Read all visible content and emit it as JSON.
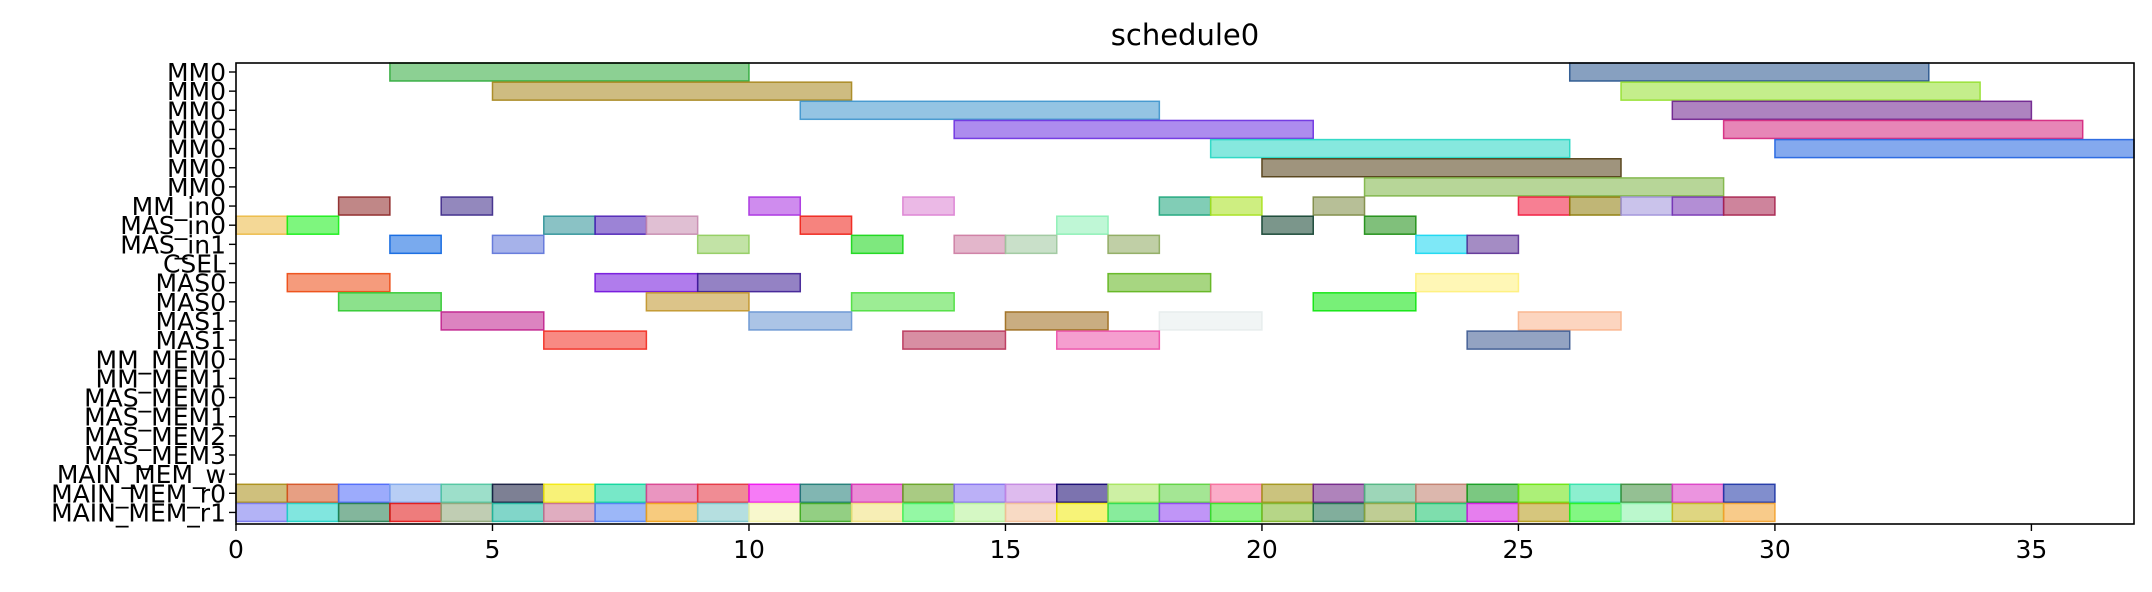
{
  "chart_data": {
    "type": "gantt",
    "title": "schedule0",
    "xlim": [
      0,
      37
    ],
    "x_ticks": [
      0,
      5,
      10,
      15,
      20,
      25,
      30,
      35
    ],
    "rows": [
      "MM0",
      "MM0",
      "MM0",
      "MM0",
      "MM0",
      "MM0",
      "MM0",
      "MM_in0",
      "MAS_in0",
      "MAS_in1",
      "CSEL",
      "MAS0",
      "MAS0",
      "MAS1",
      "MAS1",
      "MM_MEM0",
      "MM_MEM1",
      "MAS_MEM0",
      "MAS_MEM1",
      "MAS_MEM2",
      "MAS_MEM3",
      "MAIN_MEM_w",
      "MAIN_MEM_r0",
      "MAIN_MEM_r1"
    ],
    "bars": [
      {
        "row": 0,
        "start": 3,
        "end": 10,
        "color": "#2eaa3a"
      },
      {
        "row": 0,
        "start": 26,
        "end": 33,
        "color": "#25528c"
      },
      {
        "row": 1,
        "start": 5,
        "end": 12,
        "color": "#a6851a"
      },
      {
        "row": 1,
        "start": 27,
        "end": 34,
        "color": "#93e02c"
      },
      {
        "row": 2,
        "start": 11,
        "end": 18,
        "color": "#3c94cc"
      },
      {
        "row": 2,
        "start": 28,
        "end": 35,
        "color": "#6b1e8c"
      },
      {
        "row": 3,
        "start": 14,
        "end": 21,
        "color": "#6a2ee0"
      },
      {
        "row": 3,
        "start": 29,
        "end": 36,
        "color": "#d4237c"
      },
      {
        "row": 4,
        "start": 19,
        "end": 26,
        "color": "#23d6c2"
      },
      {
        "row": 4,
        "start": 30,
        "end": 37,
        "color": "#1f62e0"
      },
      {
        "row": 5,
        "start": 20,
        "end": 27,
        "color": "#503c12"
      },
      {
        "row": 6,
        "start": 22,
        "end": 29,
        "color": "#7cb443"
      },
      {
        "row": 7,
        "start": 2,
        "end": 3,
        "color": "#8c2424"
      },
      {
        "row": 7,
        "start": 4,
        "end": 5,
        "color": "#3a2687"
      },
      {
        "row": 7,
        "start": 10,
        "end": 11,
        "color": "#a72ee0"
      },
      {
        "row": 7,
        "start": 13,
        "end": 14,
        "color": "#db80d2"
      },
      {
        "row": 7,
        "start": 18,
        "end": 19,
        "color": "#1aa47a"
      },
      {
        "row": 7,
        "start": 19,
        "end": 20,
        "color": "#a6e01a"
      },
      {
        "row": 7,
        "start": 21,
        "end": 22,
        "color": "#7c8a42"
      },
      {
        "row": 7,
        "start": 25,
        "end": 26,
        "color": "#f1163a"
      },
      {
        "row": 7,
        "start": 26,
        "end": 27,
        "color": "#8c7a05"
      },
      {
        "row": 7,
        "start": 27,
        "end": 28,
        "color": "#9f91da"
      },
      {
        "row": 7,
        "start": 28,
        "end": 29,
        "color": "#7432b3"
      },
      {
        "row": 7,
        "start": 29,
        "end": 30,
        "color": "#a61f4b"
      },
      {
        "row": 8,
        "start": 0,
        "end": 1,
        "color": "#ebb840"
      },
      {
        "row": 8,
        "start": 1,
        "end": 2,
        "color": "#14ee14"
      },
      {
        "row": 8,
        "start": 6,
        "end": 7,
        "color": "#299096"
      },
      {
        "row": 8,
        "start": 7,
        "end": 8,
        "color": "#4a1eb5"
      },
      {
        "row": 8,
        "start": 8,
        "end": 9,
        "color": "#c78aae"
      },
      {
        "row": 8,
        "start": 11,
        "end": 12,
        "color": "#ee1e14"
      },
      {
        "row": 8,
        "start": 16,
        "end": 17,
        "color": "#8af0b4"
      },
      {
        "row": 8,
        "start": 20,
        "end": 21,
        "color": "#0e3f2c"
      },
      {
        "row": 8,
        "start": 22,
        "end": 23,
        "color": "#188c0e"
      },
      {
        "row": 9,
        "start": 3,
        "end": 4,
        "color": "#0b64e0"
      },
      {
        "row": 9,
        "start": 5,
        "end": 6,
        "color": "#5c72d8"
      },
      {
        "row": 9,
        "start": 9,
        "end": 10,
        "color": "#8fcc5c"
      },
      {
        "row": 9,
        "start": 12,
        "end": 13,
        "color": "#14d614"
      },
      {
        "row": 9,
        "start": 14,
        "end": 15,
        "color": "#cc7aa0"
      },
      {
        "row": 9,
        "start": 15,
        "end": 16,
        "color": "#9cc79c"
      },
      {
        "row": 9,
        "start": 17,
        "end": 18,
        "color": "#8ca85c"
      },
      {
        "row": 9,
        "start": 23,
        "end": 24,
        "color": "#14d6f0"
      },
      {
        "row": 9,
        "start": 24,
        "end": 25,
        "color": "#5a2e94"
      },
      {
        "row": 11,
        "start": 1,
        "end": 3,
        "color": "#ec4810"
      },
      {
        "row": 11,
        "start": 7,
        "end": 9,
        "color": "#7010dc"
      },
      {
        "row": 11,
        "start": 9,
        "end": 11,
        "color": "#3c1c94"
      },
      {
        "row": 11,
        "start": 17,
        "end": 19,
        "color": "#5eb41a"
      },
      {
        "row": 11,
        "start": 23,
        "end": 25,
        "color": "#fff07a"
      },
      {
        "row": 12,
        "start": 2,
        "end": 4,
        "color": "#2ec82e"
      },
      {
        "row": 12,
        "start": 8,
        "end": 10,
        "color": "#c09428"
      },
      {
        "row": 12,
        "start": 12,
        "end": 14,
        "color": "#4ade3c"
      },
      {
        "row": 12,
        "start": 21,
        "end": 23,
        "color": "#0ae40a"
      },
      {
        "row": 13,
        "start": 4,
        "end": 6,
        "color": "#c01e8c"
      },
      {
        "row": 13,
        "start": 10,
        "end": 12,
        "color": "#6694d2"
      },
      {
        "row": 13,
        "start": 15,
        "end": 17,
        "color": "#9c6a1a"
      },
      {
        "row": 13,
        "start": 18,
        "end": 20,
        "color": "#e6ecec"
      },
      {
        "row": 13,
        "start": 25,
        "end": 27,
        "color": "#fab28a"
      },
      {
        "row": 14,
        "start": 6,
        "end": 8,
        "color": "#f22a1e"
      },
      {
        "row": 14,
        "start": 13,
        "end": 15,
        "color": "#b83258"
      },
      {
        "row": 14,
        "start": 16,
        "end": 18,
        "color": "#ec4ea8"
      },
      {
        "row": 14,
        "start": 24,
        "end": 26,
        "color": "#3a5890"
      },
      {
        "row": 22,
        "start": 0,
        "end": 1,
        "color": "#a88c12"
      },
      {
        "row": 22,
        "start": 1,
        "end": 2,
        "color": "#d4501e"
      },
      {
        "row": 22,
        "start": 2,
        "end": 3,
        "color": "#4a66fa"
      },
      {
        "row": 22,
        "start": 3,
        "end": 4,
        "color": "#7ea6ec"
      },
      {
        "row": 22,
        "start": 4,
        "end": 5,
        "color": "#4cc49e"
      },
      {
        "row": 22,
        "start": 5,
        "end": 6,
        "color": "#12183c"
      },
      {
        "row": 22,
        "start": 6,
        "end": 7,
        "color": "#f2e80a"
      },
      {
        "row": 22,
        "start": 7,
        "end": 8,
        "color": "#08d69a"
      },
      {
        "row": 22,
        "start": 8,
        "end": 9,
        "color": "#d83e8c"
      },
      {
        "row": 22,
        "start": 9,
        "end": 10,
        "color": "#e42e3c"
      },
      {
        "row": 22,
        "start": 10,
        "end": 11,
        "color": "#ee0eee"
      },
      {
        "row": 22,
        "start": 11,
        "end": 12,
        "color": "#1a7a72"
      },
      {
        "row": 22,
        "start": 12,
        "end": 13,
        "color": "#da2cb4"
      },
      {
        "row": 22,
        "start": 13,
        "end": 14,
        "color": "#62a01e"
      },
      {
        "row": 22,
        "start": 14,
        "end": 15,
        "color": "#8470f0"
      },
      {
        "row": 22,
        "start": 15,
        "end": 16,
        "color": "#c284e0"
      },
      {
        "row": 22,
        "start": 16,
        "end": 17,
        "color": "#10006e"
      },
      {
        "row": 22,
        "start": 17,
        "end": 18,
        "color": "#a4e45a"
      },
      {
        "row": 22,
        "start": 18,
        "end": 19,
        "color": "#5ad23c"
      },
      {
        "row": 22,
        "start": 19,
        "end": 20,
        "color": "#f8689a"
      },
      {
        "row": 22,
        "start": 20,
        "end": 21,
        "color": "#a09214"
      },
      {
        "row": 22,
        "start": 21,
        "end": 22,
        "color": "#6e1e84"
      },
      {
        "row": 22,
        "start": 22,
        "end": 23,
        "color": "#4cb47e"
      },
      {
        "row": 22,
        "start": 23,
        "end": 24,
        "color": "#c07c6a"
      },
      {
        "row": 22,
        "start": 24,
        "end": 25,
        "color": "#0e9a1a"
      },
      {
        "row": 22,
        "start": 25,
        "end": 26,
        "color": "#68e40a"
      },
      {
        "row": 22,
        "start": 26,
        "end": 27,
        "color": "#2ee2a8"
      },
      {
        "row": 22,
        "start": 27,
        "end": 28,
        "color": "#3c8c3a"
      },
      {
        "row": 22,
        "start": 28,
        "end": 29,
        "color": "#da3cc4"
      },
      {
        "row": 22,
        "start": 29,
        "end": 30,
        "color": "#1a32a4"
      },
      {
        "row": 23,
        "start": 0,
        "end": 1,
        "color": "#7474ee"
      },
      {
        "row": 23,
        "start": 1,
        "end": 2,
        "color": "#1ad2c4"
      },
      {
        "row": 23,
        "start": 2,
        "end": 3,
        "color": "#1e7a4a"
      },
      {
        "row": 23,
        "start": 3,
        "end": 4,
        "color": "#e01010"
      },
      {
        "row": 23,
        "start": 4,
        "end": 5,
        "color": "#8ca474"
      },
      {
        "row": 23,
        "start": 5,
        "end": 6,
        "color": "#1ab49c"
      },
      {
        "row": 23,
        "start": 6,
        "end": 7,
        "color": "#c66a8c"
      },
      {
        "row": 23,
        "start": 7,
        "end": 8,
        "color": "#4a7cf2"
      },
      {
        "row": 23,
        "start": 8,
        "end": 9,
        "color": "#f0a014"
      },
      {
        "row": 23,
        "start": 9,
        "end": 10,
        "color": "#78c4c6"
      },
      {
        "row": 23,
        "start": 10,
        "end": 11,
        "color": "#f2f2a4"
      },
      {
        "row": 23,
        "start": 11,
        "end": 12,
        "color": "#3aa81e"
      },
      {
        "row": 23,
        "start": 12,
        "end": 13,
        "color": "#f0e078"
      },
      {
        "row": 23,
        "start": 13,
        "end": 14,
        "color": "#3cf25a"
      },
      {
        "row": 23,
        "start": 14,
        "end": 15,
        "color": "#b2f294"
      },
      {
        "row": 23,
        "start": 15,
        "end": 16,
        "color": "#f2bc94"
      },
      {
        "row": 23,
        "start": 16,
        "end": 17,
        "color": "#f0ea0a"
      },
      {
        "row": 23,
        "start": 17,
        "end": 18,
        "color": "#26dc4a"
      },
      {
        "row": 23,
        "start": 18,
        "end": 19,
        "color": "#8c3ef0"
      },
      {
        "row": 23,
        "start": 19,
        "end": 20,
        "color": "#30e61e"
      },
      {
        "row": 23,
        "start": 20,
        "end": 21,
        "color": "#7ab424"
      },
      {
        "row": 23,
        "start": 21,
        "end": 22,
        "color": "#1a6c4a"
      },
      {
        "row": 23,
        "start": 22,
        "end": 23,
        "color": "#8aa43c"
      },
      {
        "row": 23,
        "start": 23,
        "end": 24,
        "color": "#14c26a"
      },
      {
        "row": 23,
        "start": 24,
        "end": 25,
        "color": "#d214e0"
      },
      {
        "row": 23,
        "start": 25,
        "end": 26,
        "color": "#b49812"
      },
      {
        "row": 23,
        "start": 26,
        "end": 27,
        "color": "#1ef01e"
      },
      {
        "row": 23,
        "start": 27,
        "end": 28,
        "color": "#84f2a4"
      },
      {
        "row": 23,
        "start": 28,
        "end": 29,
        "color": "#c4b41a"
      },
      {
        "row": 23,
        "start": 29,
        "end": 30,
        "color": "#f2a02a"
      }
    ]
  }
}
